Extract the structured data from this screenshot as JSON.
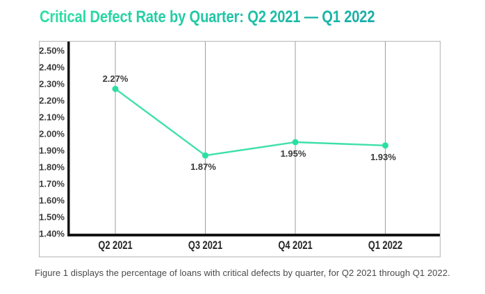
{
  "page": {
    "title": "Critical Defect Rate by Quarter: Q2 2021 — Q1 2022",
    "caption": "Figure 1 displays the percentage of loans with critical defects by quarter, for Q2 2021 through Q1 2022."
  },
  "colors": {
    "title_gradient_start": "#2be0a1",
    "title_gradient_end": "#17ada9",
    "line": "#3ee0aa",
    "point": "#2bdfa2",
    "gridline": "#9c9c9c",
    "axis": "#141414",
    "tick_label": "#3b3b3b",
    "data_label": "#3a3a3a",
    "x_label": "#252525",
    "caption_text": "#4a4a4a",
    "chart_border": "#b5b5b5"
  },
  "chart_data": {
    "type": "line",
    "title": "Critical Defect Rate by Quarter: Q2 2021 — Q1 2022",
    "categories": [
      "Q2 2021",
      "Q3 2021",
      "Q4 2021",
      "Q1 2022"
    ],
    "values": [
      2.27,
      1.87,
      1.95,
      1.93
    ],
    "point_labels": [
      "2.27%",
      "1.87%",
      "1.95%",
      "1.93%"
    ],
    "point_label_positions": [
      "above",
      "below",
      "below",
      "below"
    ],
    "xlabel": "",
    "ylabel": "",
    "ylim": [
      1.4,
      2.5
    ],
    "ytick_step": 0.1,
    "ytick_labels": [
      "2.50%",
      "2.40%",
      "2.30%",
      "2.20%",
      "2.10%",
      "2.00%",
      "1.90%",
      "1.80%",
      "1.70%",
      "1.60%",
      "1.50%",
      "1.40%"
    ],
    "grid": "vertical-only",
    "legend": "none"
  }
}
